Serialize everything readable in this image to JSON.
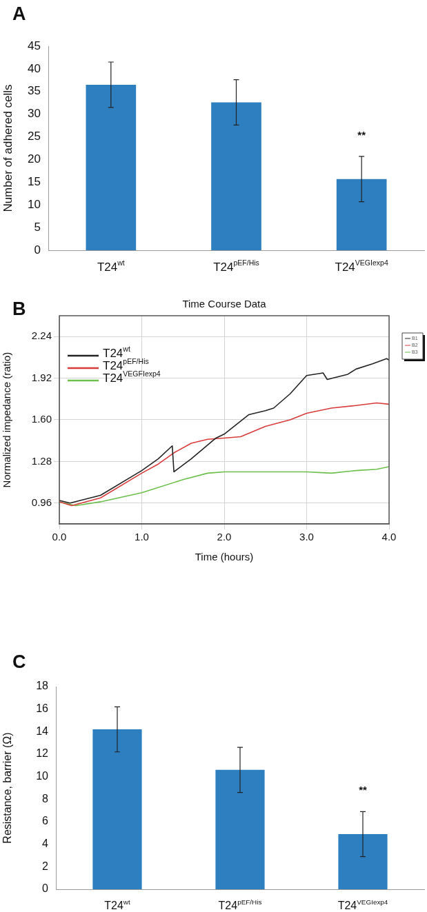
{
  "chart_data": [
    {
      "type": "bar",
      "ylabel": "Number of adhered cells",
      "categories": [
        "T24$^{wt}$",
        "T24$^{pEF/His}$",
        "T24$^{VEGIexp4}$"
      ],
      "values": [
        36.5,
        32.6,
        15.7
      ],
      "errors": [
        5,
        5,
        5
      ],
      "color": "#2e7fc0",
      "ylim": [
        0,
        45
      ],
      "yticks": [
        0,
        5,
        10,
        15,
        20,
        25,
        30,
        35,
        40,
        45
      ],
      "grid": false,
      "annotations": [
        "A",
        "**"
      ]
    },
    {
      "type": "line",
      "title": "Time Course Data",
      "xlabel": "Time (hours)",
      "ylabel": "Normalized impedance (ratio)",
      "xlim": [
        0,
        4
      ],
      "xticks": [
        {
          "value": 0,
          "label": "0.0"
        },
        {
          "value": 1,
          "label": "1.0"
        },
        {
          "value": 2,
          "label": "2.0"
        },
        {
          "value": 3,
          "label": "3.0"
        },
        {
          "value": 4,
          "label": "4.0"
        }
      ],
      "ylim": [
        0.8,
        2.4
      ],
      "yticks": [
        0.96,
        1.28,
        {
          "value": 1.6,
          "label": "1.60"
        },
        1.92,
        2.24
      ],
      "grid": true,
      "legend": "top left",
      "marker": "none",
      "line_style": "solid",
      "series": [
        {
          "name": "T24$^{wt}$",
          "color": "#222222",
          "x": [
            0,
            0.13,
            0.5,
            1.0,
            1.2,
            1.37,
            1.39,
            1.6,
            1.9,
            2.0,
            2.2,
            2.3,
            2.5,
            2.6,
            2.8,
            3.0,
            3.2,
            3.25,
            3.5,
            3.6,
            3.8,
            3.97,
            4.0
          ],
          "values": [
            0.98,
            0.96,
            1.02,
            1.21,
            1.3,
            1.4,
            1.2,
            1.3,
            1.46,
            1.49,
            1.59,
            1.64,
            1.67,
            1.69,
            1.8,
            1.94,
            1.96,
            1.91,
            1.95,
            1.99,
            2.03,
            2.07,
            2.06
          ]
        },
        {
          "name": "T24$^{pEF/His}$",
          "color": "#d93a3a",
          "x": [
            0,
            0.15,
            0.5,
            1.0,
            1.2,
            1.4,
            1.6,
            1.8,
            2.0,
            2.2,
            2.5,
            2.8,
            3.0,
            3.3,
            3.6,
            3.85,
            4.0
          ],
          "values": [
            0.97,
            0.94,
            1.0,
            1.19,
            1.26,
            1.35,
            1.42,
            1.45,
            1.46,
            1.47,
            1.55,
            1.6,
            1.65,
            1.69,
            1.71,
            1.73,
            1.72
          ]
        },
        {
          "name": "T24$^{VEGFIexp4}$",
          "color": "#6abf4b",
          "x": [
            0,
            0.2,
            0.5,
            1.0,
            1.5,
            1.8,
            2.0,
            2.5,
            3.0,
            3.3,
            3.6,
            3.85,
            4.0
          ],
          "values": [
            0.97,
            0.94,
            0.97,
            1.04,
            1.14,
            1.19,
            1.2,
            1.2,
            1.2,
            1.19,
            1.21,
            1.22,
            1.24
          ]
        }
      ],
      "annotations": [
        "B",
        "B1",
        "B2",
        "B3"
      ]
    },
    {
      "type": "bar",
      "ylabel": "Resistance, barrier (Ω)",
      "categories": [
        "T24$^{wt}$",
        "T24$^{pEF/His}$",
        "T24$^{VEGIexp4}$"
      ],
      "values": [
        14.2,
        10.6,
        4.9
      ],
      "errors": [
        2,
        2,
        2
      ],
      "color": "#2e7fc0",
      "ylim": [
        0,
        18
      ],
      "yticks": [
        0,
        2,
        4,
        6,
        8,
        10,
        12,
        14,
        16,
        18
      ],
      "grid": false,
      "annotations": [
        "C",
        "**"
      ]
    }
  ]
}
